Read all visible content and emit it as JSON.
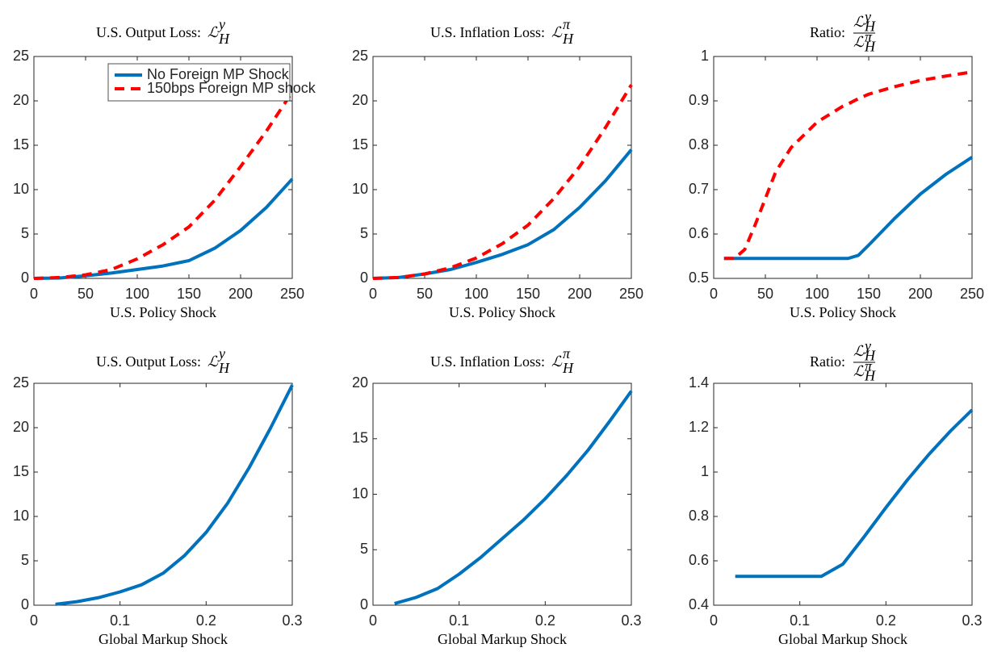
{
  "chart_data": [
    {
      "type": "line",
      "title": "U.S. Output Loss:",
      "title_math": {
        "base": "ℒ",
        "sub": "H",
        "sup": "y"
      },
      "xlabel": "U.S. Policy Shock",
      "x": [
        0,
        25,
        50,
        75,
        100,
        125,
        150,
        175,
        200,
        225,
        250
      ],
      "series": [
        {
          "name": "No Foreign MP Shock",
          "color": "#0072bd",
          "style": "solid",
          "values": [
            0,
            0.05,
            0.3,
            0.6,
            1.0,
            1.4,
            2.0,
            3.4,
            5.4,
            8.0,
            11.2
          ]
        },
        {
          "name": "150bps Foreign MP shock",
          "color": "#ff0000",
          "style": "dashed",
          "values": [
            0,
            0.1,
            0.4,
            1.0,
            2.2,
            3.8,
            5.8,
            8.8,
            12.6,
            16.6,
            21.0
          ]
        }
      ],
      "xlim": [
        0,
        250
      ],
      "xticks": [
        0,
        50,
        100,
        150,
        200,
        250
      ],
      "ylim": [
        0,
        25
      ],
      "yticks": [
        0,
        5,
        10,
        15,
        20,
        25
      ],
      "legend": "upper right"
    },
    {
      "type": "line",
      "title": "U.S. Inflation Loss:",
      "title_math": {
        "base": "ℒ",
        "sub": "H",
        "sup": "π"
      },
      "xlabel": "U.S. Policy Shock",
      "x": [
        0,
        25,
        50,
        75,
        100,
        125,
        150,
        175,
        200,
        225,
        250
      ],
      "series": [
        {
          "color": "#0072bd",
          "style": "solid",
          "values": [
            0,
            0.1,
            0.5,
            1.0,
            1.8,
            2.7,
            3.8,
            5.5,
            8.0,
            11.0,
            14.5
          ]
        },
        {
          "color": "#ff0000",
          "style": "dashed",
          "values": [
            0,
            0.1,
            0.5,
            1.2,
            2.3,
            3.9,
            6.0,
            9.0,
            12.6,
            17.0,
            21.8
          ]
        }
      ],
      "xlim": [
        0,
        250
      ],
      "xticks": [
        0,
        50,
        100,
        150,
        200,
        250
      ],
      "ylim": [
        0,
        25
      ],
      "yticks": [
        0,
        5,
        10,
        15,
        20,
        25
      ]
    },
    {
      "type": "line",
      "title": "Ratio:",
      "title_math": {
        "num": {
          "base": "ℒ",
          "sub": "H",
          "sup": "y"
        },
        "den": {
          "base": "ℒ",
          "sub": "H",
          "sup": "π"
        }
      },
      "xlabel": "U.S. Policy Shock",
      "x": [
        10,
        20,
        30,
        40,
        50,
        60,
        75,
        100,
        125,
        130,
        140,
        150,
        175,
        200,
        225,
        250
      ],
      "series": [
        {
          "color": "#0072bd",
          "style": "solid",
          "values": [
            0.545,
            0.545,
            0.545,
            0.545,
            0.545,
            0.545,
            0.545,
            0.545,
            0.545,
            0.545,
            0.552,
            0.575,
            0.635,
            0.69,
            0.735,
            0.773
          ]
        },
        {
          "color": "#ff0000",
          "style": "dashed",
          "values": [
            0.545,
            0.545,
            0.565,
            0.62,
            0.68,
            0.74,
            0.795,
            0.852,
            0.888,
            0.893,
            0.905,
            0.915,
            0.932,
            0.946,
            0.956,
            0.965
          ]
        }
      ],
      "xlim": [
        0,
        250
      ],
      "xticks": [
        0,
        50,
        100,
        150,
        200,
        250
      ],
      "ylim": [
        0.5,
        1
      ],
      "yticks": [
        0.5,
        0.6,
        0.7,
        0.8,
        0.9,
        1
      ]
    },
    {
      "type": "line",
      "title": "U.S. Output Loss:",
      "title_math": {
        "base": "ℒ",
        "sub": "H",
        "sup": "y"
      },
      "xlabel": "Global Markup Shock",
      "x": [
        0.025,
        0.05,
        0.075,
        0.1,
        0.125,
        0.15,
        0.175,
        0.2,
        0.225,
        0.25,
        0.275,
        0.3
      ],
      "series": [
        {
          "color": "#0072bd",
          "style": "solid",
          "values": [
            0.1,
            0.4,
            0.85,
            1.5,
            2.3,
            3.6,
            5.6,
            8.2,
            11.5,
            15.5,
            20,
            24.8
          ]
        }
      ],
      "xlim": [
        0,
        0.3
      ],
      "xticks": [
        0,
        0.1,
        0.2,
        0.3
      ],
      "ylim": [
        0,
        25
      ],
      "yticks": [
        0,
        5,
        10,
        15,
        20,
        25
      ]
    },
    {
      "type": "line",
      "title": "U.S. Inflation Loss:",
      "title_math": {
        "base": "ℒ",
        "sub": "H",
        "sup": "π"
      },
      "xlabel": "Global Markup Shock",
      "x": [
        0.025,
        0.05,
        0.075,
        0.1,
        0.125,
        0.15,
        0.175,
        0.2,
        0.225,
        0.25,
        0.275,
        0.3
      ],
      "series": [
        {
          "color": "#0072bd",
          "style": "solid",
          "values": [
            0.15,
            0.7,
            1.5,
            2.8,
            4.3,
            6,
            7.7,
            9.6,
            11.7,
            14,
            16.6,
            19.3
          ]
        }
      ],
      "xlim": [
        0,
        0.3
      ],
      "xticks": [
        0,
        0.1,
        0.2,
        0.3
      ],
      "ylim": [
        0,
        20
      ],
      "yticks": [
        0,
        5,
        10,
        15,
        20
      ]
    },
    {
      "type": "line",
      "title": "Ratio:",
      "title_math": {
        "num": {
          "base": "ℒ",
          "sub": "H",
          "sup": "y"
        },
        "den": {
          "base": "ℒ",
          "sub": "H",
          "sup": "π"
        }
      },
      "xlabel": "Global Markup Shock",
      "x": [
        0.025,
        0.05,
        0.075,
        0.1,
        0.125,
        0.15,
        0.175,
        0.2,
        0.225,
        0.25,
        0.275,
        0.3
      ],
      "series": [
        {
          "color": "#0072bd",
          "style": "solid",
          "values": [
            0.53,
            0.53,
            0.53,
            0.53,
            0.53,
            0.585,
            0.71,
            0.84,
            0.965,
            1.08,
            1.185,
            1.28
          ]
        }
      ],
      "xlim": [
        0,
        0.3
      ],
      "xticks": [
        0,
        0.1,
        0.2,
        0.3
      ],
      "ylim": [
        0.4,
        1.4
      ],
      "yticks": [
        0.4,
        0.6,
        0.8,
        1,
        1.2,
        1.4
      ]
    }
  ]
}
